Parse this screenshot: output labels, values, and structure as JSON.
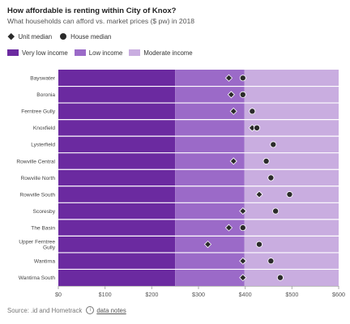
{
  "title": "How affordable is renting within City of Knox?",
  "subtitle": "What households can afford vs. market prices ($ pw) in 2018",
  "legend_markers": {
    "unit": {
      "label": "Unit median",
      "icon": "diamond-marker"
    },
    "house": {
      "label": "House median",
      "icon": "circle-marker"
    }
  },
  "legend_bands": [
    {
      "label": "Very low income",
      "color": "#6b2aa0"
    },
    {
      "label": "Low income",
      "color": "#9b6ac8"
    },
    {
      "label": "Moderate income",
      "color": "#c9ade0"
    }
  ],
  "source": {
    "label": "Source: .id and Hometrack",
    "link": "data notes",
    "icon": "info-icon"
  },
  "chart_data": {
    "type": "scatter",
    "title": "How affordable is renting within City of Knox?",
    "subtitle": "What households can afford vs. market prices ($ pw) in 2018",
    "categories": [
      "Bayswater",
      "Boronia",
      "Ferntree Gully",
      "Knoxfield",
      "Lysterfield",
      "Rowville Central",
      "Rowville North",
      "Rowville South",
      "Scoresby",
      "The Basin",
      "Upper Ferntree Gully",
      "Wantirna",
      "Wantirna South"
    ],
    "series": [
      {
        "name": "Unit median",
        "marker": "diamond",
        "values": [
          365,
          370,
          375,
          415,
          null,
          375,
          null,
          430,
          395,
          365,
          320,
          395,
          395
        ]
      },
      {
        "name": "House median",
        "marker": "circle",
        "values": [
          395,
          395,
          415,
          425,
          460,
          445,
          455,
          495,
          465,
          395,
          430,
          455,
          475
        ]
      }
    ],
    "bands": [
      {
        "name": "Very low income",
        "from": 0,
        "to": 250,
        "color": "#6b2aa0"
      },
      {
        "name": "Low income",
        "from": 250,
        "to": 398,
        "color": "#9b6ac8"
      },
      {
        "name": "Moderate income",
        "from": 398,
        "to": 600,
        "color": "#c9ade0"
      }
    ],
    "xlim": [
      0,
      600
    ],
    "xticks": [
      "$0",
      "$100",
      "$200",
      "$300",
      "$400",
      "$500",
      "$600"
    ],
    "xtick_values": [
      0,
      100,
      200,
      300,
      400,
      500,
      600
    ],
    "grid": true,
    "legend_position": "top-left"
  }
}
